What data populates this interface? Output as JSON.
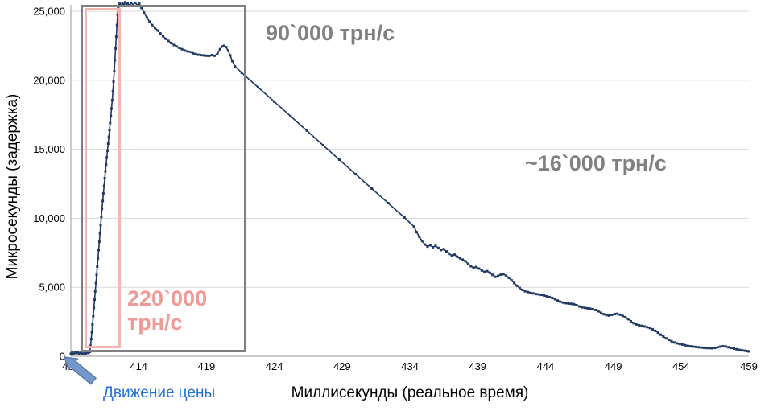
{
  "chart_data": {
    "type": "line",
    "title": "",
    "xlabel": "Миллисекунды (реальное время)",
    "ylabel": "Микросекунды (задержка)",
    "xlim": [
      409,
      459
    ],
    "ylim": [
      0,
      25000
    ],
    "x_ticks": [
      409,
      414,
      419,
      424,
      429,
      434,
      439,
      444,
      449,
      454,
      459
    ],
    "y_ticks": [
      0,
      5000,
      10000,
      15000,
      20000,
      25000
    ],
    "y_tick_labels": [
      "0",
      "5,000",
      "10,000",
      "15,000",
      "20,000",
      "25,000"
    ],
    "grid": "horizontal",
    "grid_color": "#d9d9d9",
    "axis_color": "#9a9a9a",
    "tick_label_color": "#000000",
    "legend": "none",
    "series": [
      {
        "name": "Микросекунды (задержка)",
        "color": "#1f3864",
        "marker": "square",
        "points": [
          [
            409.0,
            180
          ],
          [
            409.1,
            260
          ],
          [
            409.2,
            150
          ],
          [
            409.3,
            310
          ],
          [
            409.4,
            220
          ],
          [
            409.5,
            290
          ],
          [
            409.6,
            180
          ],
          [
            409.7,
            250
          ],
          [
            409.8,
            200
          ],
          [
            409.9,
            160
          ],
          [
            410.0,
            230
          ],
          [
            410.1,
            190
          ],
          [
            410.2,
            260
          ],
          [
            410.3,
            240
          ],
          [
            410.4,
            320
          ],
          [
            410.45,
            750
          ],
          [
            410.5,
            1250
          ],
          [
            410.55,
            1750
          ],
          [
            410.6,
            2300
          ],
          [
            410.65,
            2900
          ],
          [
            410.7,
            3500
          ],
          [
            410.75,
            4100
          ],
          [
            410.8,
            4700
          ],
          [
            410.85,
            5300
          ],
          [
            410.9,
            5900
          ],
          [
            410.95,
            6500
          ],
          [
            411.0,
            7100
          ],
          [
            411.05,
            7700
          ],
          [
            411.1,
            8300
          ],
          [
            411.15,
            8900
          ],
          [
            411.2,
            9500
          ],
          [
            411.25,
            10100
          ],
          [
            411.3,
            10700
          ],
          [
            411.35,
            11250
          ],
          [
            411.4,
            11800
          ],
          [
            411.45,
            12350
          ],
          [
            411.5,
            12900
          ],
          [
            411.55,
            13400
          ],
          [
            411.6,
            13900
          ],
          [
            411.65,
            14400
          ],
          [
            411.7,
            14900
          ],
          [
            411.75,
            15400
          ],
          [
            411.8,
            15900
          ],
          [
            411.85,
            16400
          ],
          [
            411.9,
            16900
          ],
          [
            411.95,
            17400
          ],
          [
            412.0,
            17950
          ],
          [
            412.05,
            18550
          ],
          [
            412.1,
            19200
          ],
          [
            412.15,
            19900
          ],
          [
            412.2,
            20650
          ],
          [
            412.25,
            21450
          ],
          [
            412.3,
            22300
          ],
          [
            412.35,
            23150
          ],
          [
            412.4,
            24000
          ],
          [
            412.45,
            24750
          ],
          [
            412.5,
            25300
          ],
          [
            412.6,
            25550
          ],
          [
            412.7,
            25400
          ],
          [
            412.8,
            25600
          ],
          [
            412.9,
            25450
          ],
          [
            413.0,
            25650
          ],
          [
            413.1,
            25480
          ],
          [
            413.2,
            25600
          ],
          [
            413.3,
            25430
          ],
          [
            413.45,
            25580
          ],
          [
            413.6,
            25470
          ],
          [
            413.75,
            25620
          ],
          [
            413.9,
            25450
          ],
          [
            414.05,
            25550
          ],
          [
            414.2,
            25250
          ],
          [
            414.4,
            24900
          ],
          [
            414.6,
            24550
          ],
          [
            414.8,
            24250
          ],
          [
            415.0,
            24000
          ],
          [
            415.2,
            23800
          ],
          [
            415.4,
            23600
          ],
          [
            415.6,
            23400
          ],
          [
            415.8,
            23200
          ],
          [
            416.0,
            23000
          ],
          [
            416.2,
            22850
          ],
          [
            416.4,
            22700
          ],
          [
            416.6,
            22550
          ],
          [
            416.8,
            22450
          ],
          [
            417.0,
            22350
          ],
          [
            417.2,
            22250
          ],
          [
            417.4,
            22150
          ],
          [
            417.6,
            22100
          ],
          [
            418.0,
            21950
          ],
          [
            418.2,
            21900
          ],
          [
            418.4,
            21850
          ],
          [
            418.6,
            21820
          ],
          [
            418.8,
            21800
          ],
          [
            419.0,
            21780
          ],
          [
            419.2,
            21760
          ],
          [
            419.4,
            21820
          ],
          [
            419.6,
            21780
          ],
          [
            419.8,
            21900
          ],
          [
            420.0,
            22250
          ],
          [
            420.15,
            22450
          ],
          [
            420.3,
            22500
          ],
          [
            420.45,
            22400
          ],
          [
            420.6,
            22150
          ],
          [
            420.75,
            21800
          ],
          [
            420.9,
            21400
          ],
          [
            421.1,
            21000
          ],
          [
            421.6,
            20550
          ],
          [
            422.8,
            19500
          ],
          [
            424.0,
            18450
          ],
          [
            425.2,
            17400
          ],
          [
            426.4,
            16350
          ],
          [
            427.6,
            15300
          ],
          [
            428.8,
            14250
          ],
          [
            430.0,
            13200
          ],
          [
            431.2,
            12150
          ],
          [
            432.4,
            11100
          ],
          [
            433.6,
            10050
          ],
          [
            434.3,
            9400
          ],
          [
            434.5,
            9000
          ],
          [
            434.7,
            8650
          ],
          [
            434.9,
            8350
          ],
          [
            435.1,
            8100
          ],
          [
            435.3,
            7950
          ],
          [
            435.5,
            8050
          ],
          [
            435.7,
            7900
          ],
          [
            435.9,
            8000
          ],
          [
            436.1,
            7850
          ],
          [
            436.3,
            7700
          ],
          [
            436.5,
            7760
          ],
          [
            436.7,
            7600
          ],
          [
            436.9,
            7420
          ],
          [
            437.1,
            7300
          ],
          [
            437.3,
            7360
          ],
          [
            437.5,
            7200
          ],
          [
            437.7,
            7100
          ],
          [
            437.9,
            7000
          ],
          [
            438.1,
            6880
          ],
          [
            438.3,
            6700
          ],
          [
            438.5,
            6520
          ],
          [
            438.7,
            6420
          ],
          [
            438.9,
            6470
          ],
          [
            439.1,
            6350
          ],
          [
            439.3,
            6220
          ],
          [
            439.5,
            6120
          ],
          [
            439.7,
            6170
          ],
          [
            439.9,
            6050
          ],
          [
            440.1,
            5900
          ],
          [
            440.3,
            5760
          ],
          [
            440.5,
            5820
          ],
          [
            440.7,
            5910
          ],
          [
            440.9,
            5950
          ],
          [
            441.1,
            5840
          ],
          [
            441.3,
            5690
          ],
          [
            441.5,
            5500
          ],
          [
            441.7,
            5300
          ],
          [
            441.9,
            5110
          ],
          [
            442.1,
            4950
          ],
          [
            442.3,
            4810
          ],
          [
            442.5,
            4710
          ],
          [
            442.7,
            4650
          ],
          [
            442.9,
            4600
          ],
          [
            443.1,
            4560
          ],
          [
            443.3,
            4510
          ],
          [
            443.5,
            4480
          ],
          [
            443.7,
            4450
          ],
          [
            443.9,
            4400
          ],
          [
            444.1,
            4350
          ],
          [
            444.3,
            4290
          ],
          [
            444.5,
            4230
          ],
          [
            444.7,
            4140
          ],
          [
            444.9,
            4040
          ],
          [
            445.1,
            3950
          ],
          [
            445.3,
            3890
          ],
          [
            445.5,
            3850
          ],
          [
            445.7,
            3820
          ],
          [
            445.9,
            3800
          ],
          [
            446.1,
            3770
          ],
          [
            446.3,
            3700
          ],
          [
            446.5,
            3610
          ],
          [
            446.7,
            3550
          ],
          [
            446.9,
            3510
          ],
          [
            447.1,
            3480
          ],
          [
            447.3,
            3450
          ],
          [
            447.5,
            3410
          ],
          [
            447.7,
            3350
          ],
          [
            447.9,
            3260
          ],
          [
            448.1,
            3150
          ],
          [
            448.3,
            3050
          ],
          [
            448.5,
            2980
          ],
          [
            448.7,
            2950
          ],
          [
            448.9,
            3000
          ],
          [
            449.1,
            3060
          ],
          [
            449.3,
            3080
          ],
          [
            449.5,
            3010
          ],
          [
            449.7,
            2920
          ],
          [
            449.9,
            2830
          ],
          [
            450.1,
            2690
          ],
          [
            450.3,
            2540
          ],
          [
            450.5,
            2400
          ],
          [
            450.7,
            2310
          ],
          [
            450.9,
            2250
          ],
          [
            451.1,
            2210
          ],
          [
            451.3,
            2160
          ],
          [
            451.5,
            2110
          ],
          [
            451.7,
            2050
          ],
          [
            451.9,
            1960
          ],
          [
            452.1,
            1850
          ],
          [
            452.3,
            1710
          ],
          [
            452.5,
            1560
          ],
          [
            452.7,
            1420
          ],
          [
            452.9,
            1300
          ],
          [
            453.1,
            1190
          ],
          [
            453.3,
            1090
          ],
          [
            453.5,
            1000
          ],
          [
            453.7,
            940
          ],
          [
            453.9,
            890
          ],
          [
            454.1,
            850
          ],
          [
            454.3,
            800
          ],
          [
            454.5,
            760
          ],
          [
            454.7,
            720
          ],
          [
            454.9,
            700
          ],
          [
            455.1,
            680
          ],
          [
            455.3,
            650
          ],
          [
            455.5,
            630
          ],
          [
            455.7,
            615
          ],
          [
            455.9,
            600
          ],
          [
            456.1,
            590
          ],
          [
            456.3,
            585
          ],
          [
            456.5,
            605
          ],
          [
            456.7,
            650
          ],
          [
            456.9,
            700
          ],
          [
            457.1,
            730
          ],
          [
            457.3,
            705
          ],
          [
            457.5,
            655
          ],
          [
            457.7,
            605
          ],
          [
            457.9,
            555
          ],
          [
            458.1,
            505
          ],
          [
            458.3,
            465
          ],
          [
            458.5,
            430
          ],
          [
            458.7,
            400
          ],
          [
            458.9,
            375
          ],
          [
            459.0,
            350
          ]
        ]
      }
    ],
    "annotations": [
      {
        "id": "throughput-90k",
        "text": "90`000 трн/с",
        "color": "#808080"
      },
      {
        "id": "throughput-16k",
        "text": "~16`000 трн/с",
        "color": "#808080"
      },
      {
        "id": "throughput-220k",
        "text": "220`000 трн/с",
        "color": "#f09a97"
      },
      {
        "id": "price-movement",
        "text": "Движение цены",
        "color": "#2170d8"
      }
    ],
    "highlight_boxes": [
      {
        "id": "gray-window",
        "border_color": "#7f7f7f"
      },
      {
        "id": "pink-window",
        "border_color": "#f5b6b3"
      }
    ],
    "arrow": {
      "fill": "#7396cb",
      "stroke": "#54749f"
    }
  }
}
